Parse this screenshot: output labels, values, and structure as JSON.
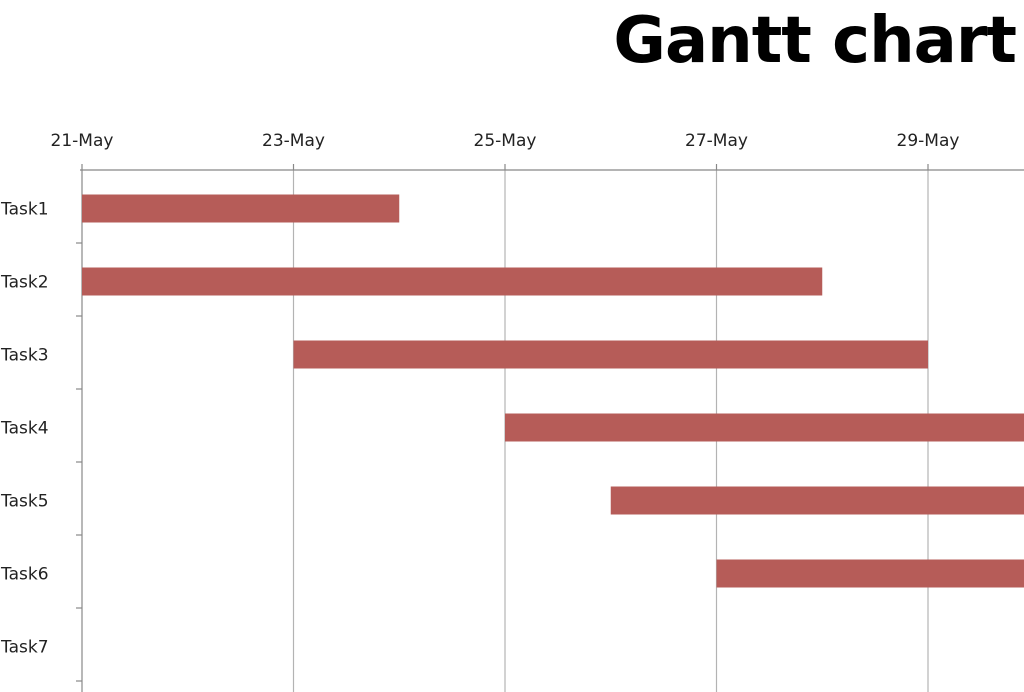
{
  "chart_data": {
    "type": "gantt",
    "title": "Gantt chart",
    "x_axis": {
      "type": "date",
      "position": "top",
      "range": [
        "2024-05-21",
        "2024-05-30"
      ],
      "ticks": [
        "21-May",
        "23-May",
        "25-May",
        "27-May",
        "29-May"
      ],
      "grid": true
    },
    "categories": [
      "Task1",
      "Task2",
      "Task3",
      "Task4",
      "Task5",
      "Task6",
      "Task7"
    ],
    "tasks": [
      {
        "name": "Task1",
        "start": "21-May",
        "end": "24-May"
      },
      {
        "name": "Task2",
        "start": "21-May",
        "end": "28-May"
      },
      {
        "name": "Task3",
        "start": "23-May",
        "end": "29-May"
      },
      {
        "name": "Task4",
        "start": "25-May",
        "end": null
      },
      {
        "name": "Task5",
        "start": "26-May",
        "end": null
      },
      {
        "name": "Task6",
        "start": "27-May",
        "end": null
      },
      {
        "name": "Task7",
        "start": null,
        "end": null
      }
    ],
    "bar_color": "#b65c58",
    "grid_color": "#b3b3b3",
    "axis_color": "#888888"
  }
}
